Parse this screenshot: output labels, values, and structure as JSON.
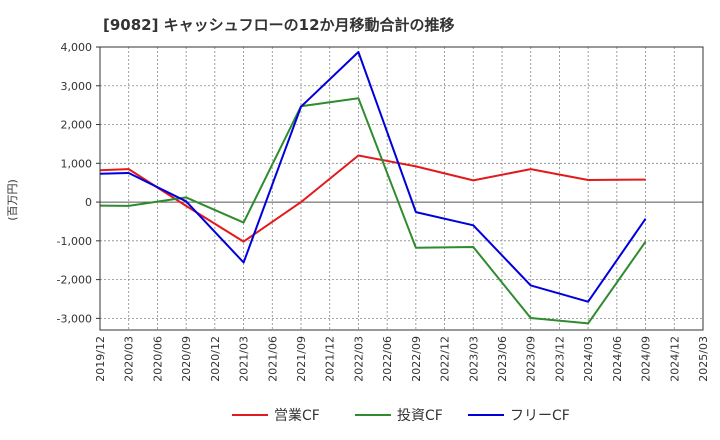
{
  "chart_data": {
    "type": "line",
    "title": "[9082]  キャッシュフローの12か月移動合計の推移",
    "ylabel": "(百万円)",
    "xlabel": "",
    "ylim": [
      -3300,
      4000
    ],
    "yticks": [
      4000,
      3000,
      2000,
      1000,
      0,
      -1000,
      -2000,
      -3000
    ],
    "ytick_labels": [
      "4,000",
      "3,000",
      "2,000",
      "1,000",
      "0",
      "-1,000",
      "-2,000",
      "-3,000"
    ],
    "categories": [
      "2019/12",
      "2020/03",
      "2020/06",
      "2020/09",
      "2020/12",
      "2021/03",
      "2021/06",
      "2021/09",
      "2021/12",
      "2022/03",
      "2022/06",
      "2022/09",
      "2022/12",
      "2023/03",
      "2023/06",
      "2023/09",
      "2023/12",
      "2024/03",
      "2024/06",
      "2024/09",
      "2024/12",
      "2025/03"
    ],
    "grid": true,
    "legend_position": "bottom",
    "series": [
      {
        "name": "営業CF",
        "color": "#e31a1c",
        "values": [
          820,
          850,
          null,
          -100,
          null,
          -1020,
          null,
          0,
          null,
          1200,
          null,
          920,
          null,
          560,
          null,
          850,
          null,
          570,
          null,
          580,
          null,
          null
        ]
      },
      {
        "name": "投資CF",
        "color": "#2e8b2e",
        "values": [
          -90,
          -100,
          null,
          120,
          null,
          -530,
          null,
          2470,
          null,
          2680,
          null,
          -1180,
          null,
          -1160,
          null,
          -2990,
          null,
          -3130,
          null,
          -1020,
          null,
          null
        ]
      },
      {
        "name": "フリーCF",
        "color": "#0000dd",
        "values": [
          730,
          750,
          null,
          20,
          null,
          -1560,
          null,
          2460,
          null,
          3870,
          null,
          -260,
          null,
          -600,
          null,
          -2150,
          null,
          -2570,
          null,
          -430,
          null,
          null
        ]
      }
    ]
  }
}
